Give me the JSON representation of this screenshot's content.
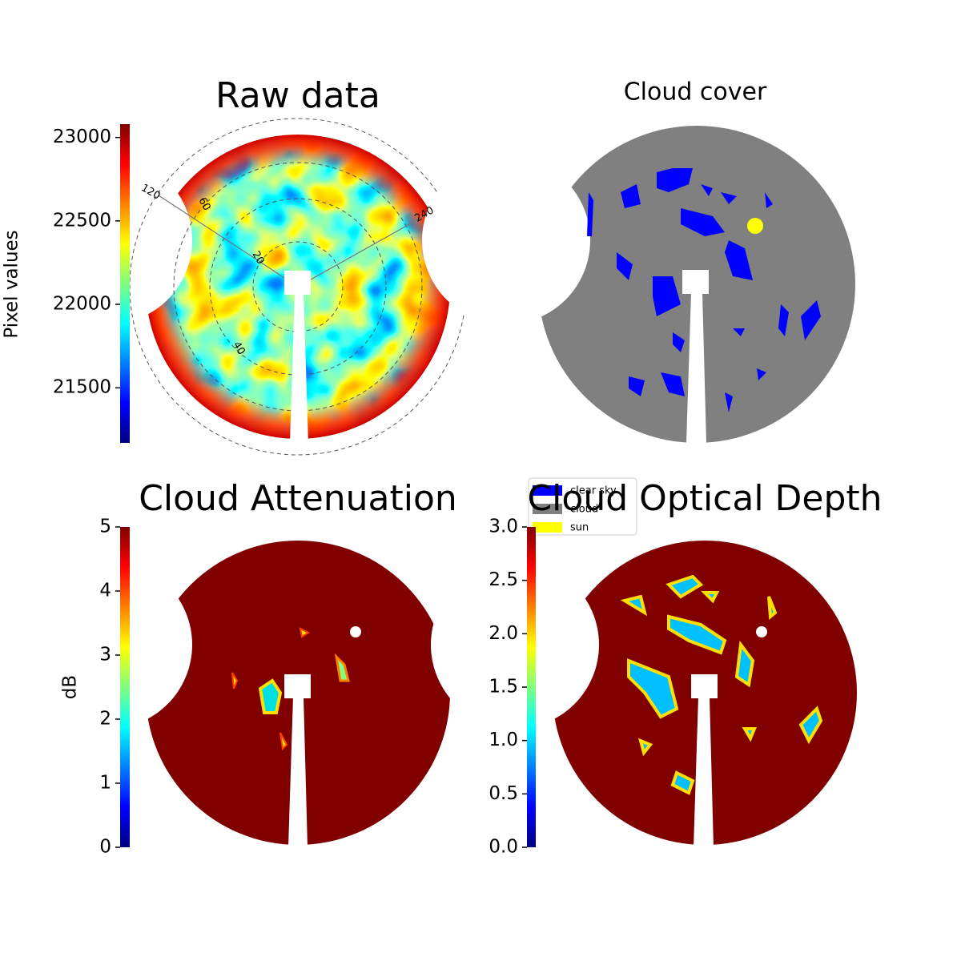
{
  "chart_data": [
    {
      "type": "image",
      "title": "Raw data",
      "colorbar": {
        "label": "Pixel values",
        "colormap": "jet",
        "lim": [
          21170,
          23080
        ],
        "ticks": [
          21500,
          22000,
          22500,
          23000
        ]
      },
      "annotations": [
        "120",
        "60",
        "240",
        "20",
        "40"
      ]
    },
    {
      "type": "image",
      "title": "Cloud cover",
      "legend": [
        {
          "name": "clear sky",
          "color": "#0000ff"
        },
        {
          "name": "cloud",
          "color": "#808080"
        },
        {
          "name": "sun",
          "color": "#ffff00"
        }
      ]
    },
    {
      "type": "image",
      "title": "Cloud Attenuation",
      "colorbar": {
        "label": "dB",
        "colormap": "jet",
        "lim": [
          0,
          5
        ],
        "ticks": [
          0,
          1,
          2,
          3,
          4,
          5
        ]
      }
    },
    {
      "type": "image",
      "title": "Cloud Optical Depth",
      "colorbar": {
        "colormap": "jet",
        "lim": [
          0,
          3
        ],
        "ticks": [
          {
            "value": 0,
            "label": "0.0"
          },
          {
            "value": 0.5,
            "label": "0.5"
          },
          {
            "value": 1,
            "label": "1.0"
          },
          {
            "value": 1.5,
            "label": "1.5"
          },
          {
            "value": 2,
            "label": "2.0"
          },
          {
            "value": 2.5,
            "label": "2.5"
          },
          {
            "value": 3,
            "label": "3.0"
          }
        ]
      }
    }
  ]
}
